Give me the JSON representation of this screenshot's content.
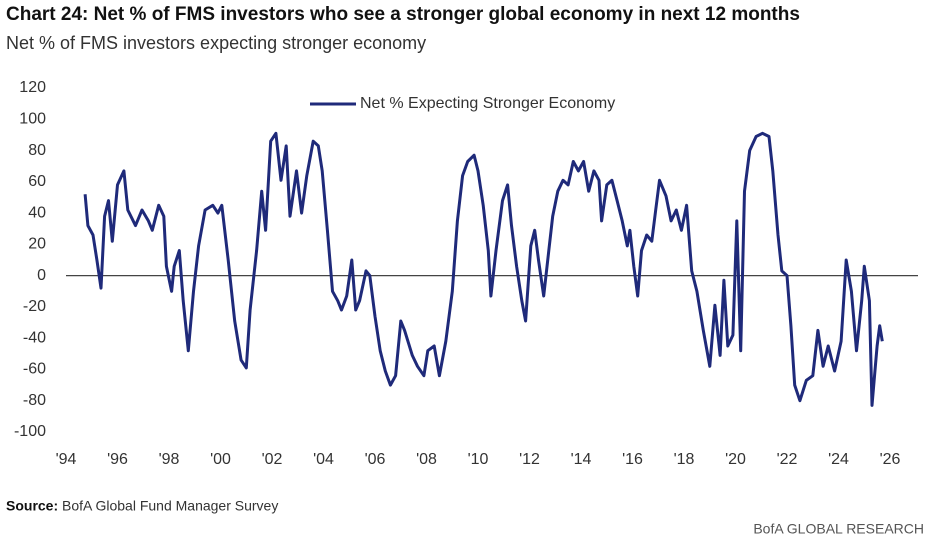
{
  "chart_data": {
    "type": "line",
    "title": "Chart 24: Net % of FMS investors who see a stronger global economy in next 12 months",
    "subtitle": "Net % of FMS investors expecting stronger economy",
    "source_label": "Source:",
    "source": "BofA Global Fund Manager Survey",
    "footer": "BofA GLOBAL RESEARCH",
    "legend_position": "top",
    "grid": false,
    "xlim": [
      1994,
      2026
    ],
    "ylim": [
      -100,
      120
    ],
    "yticks": [
      -100,
      -80,
      -60,
      -40,
      -20,
      0,
      20,
      40,
      60,
      80,
      100,
      120
    ],
    "xticks": [
      {
        "value": 1994,
        "label": "'94"
      },
      {
        "value": 1996,
        "label": "'96"
      },
      {
        "value": 1998,
        "label": "'98"
      },
      {
        "value": 2000,
        "label": "'00"
      },
      {
        "value": 2002,
        "label": "'02"
      },
      {
        "value": 2004,
        "label": "'04"
      },
      {
        "value": 2006,
        "label": "'06"
      },
      {
        "value": 2008,
        "label": "'08"
      },
      {
        "value": 2010,
        "label": "'10"
      },
      {
        "value": 2012,
        "label": "'12"
      },
      {
        "value": 2014,
        "label": "'14"
      },
      {
        "value": 2016,
        "label": "'16"
      },
      {
        "value": 2018,
        "label": "'18"
      },
      {
        "value": 2020,
        "label": "'20"
      },
      {
        "value": 2022,
        "label": "'22"
      },
      {
        "value": 2024,
        "label": "'24"
      },
      {
        "value": 2026,
        "label": "'26"
      }
    ],
    "x": [
      1994.74,
      1994.85,
      1995.05,
      1995.2,
      1995.36,
      1995.5,
      1995.65,
      1995.8,
      1996.0,
      1996.25,
      1996.4,
      1996.7,
      1996.95,
      1997.2,
      1997.35,
      1997.6,
      1997.8,
      1997.9,
      1998.1,
      1998.2,
      1998.4,
      1998.55,
      1998.75,
      1998.95,
      1999.15,
      1999.4,
      1999.7,
      1999.9,
      2000.05,
      2000.3,
      2000.55,
      2000.8,
      2001.0,
      2001.15,
      2001.4,
      2001.6,
      2001.75,
      2001.95,
      2002.15,
      2002.35,
      2002.55,
      2002.7,
      2002.95,
      2003.15,
      2003.35,
      2003.6,
      2003.8,
      2003.95,
      2004.15,
      2004.35,
      2004.55,
      2004.7,
      2004.9,
      2005.1,
      2005.25,
      2005.4,
      2005.65,
      2005.8,
      2006.0,
      2006.2,
      2006.4,
      2006.6,
      2006.8,
      2007.0,
      2007.15,
      2007.45,
      2007.65,
      2007.9,
      2008.05,
      2008.3,
      2008.5,
      2008.75,
      2009.0,
      2009.2,
      2009.4,
      2009.6,
      2009.85,
      2010.0,
      2010.2,
      2010.4,
      2010.5,
      2010.7,
      2010.95,
      2011.15,
      2011.3,
      2011.5,
      2011.7,
      2011.85,
      2012.05,
      2012.2,
      2012.35,
      2012.55,
      2012.75,
      2012.9,
      2013.1,
      2013.3,
      2013.5,
      2013.7,
      2013.9,
      2014.1,
      2014.3,
      2014.5,
      2014.7,
      2014.8,
      2015.0,
      2015.2,
      2015.4,
      2015.6,
      2015.8,
      2015.9,
      2016.05,
      2016.2,
      2016.35,
      2016.55,
      2016.75,
      2016.9,
      2017.05,
      2017.3,
      2017.5,
      2017.7,
      2017.9,
      2018.1,
      2018.3,
      2018.5,
      2018.75,
      2019.0,
      2019.2,
      2019.4,
      2019.55,
      2019.7,
      2019.9,
      2020.05,
      2020.2,
      2020.35,
      2020.55,
      2020.8,
      2021.05,
      2021.3,
      2021.45,
      2021.65,
      2021.8,
      2022.0,
      2022.15,
      2022.3,
      2022.5,
      2022.75,
      2023.0,
      2023.2,
      2023.4,
      2023.6,
      2023.85,
      2024.1,
      2024.3,
      2024.5,
      2024.7,
      2024.9,
      2025.0,
      2025.2,
      2025.3,
      2025.5,
      2025.6,
      2025.7
    ],
    "series": [
      {
        "name": "Net % Expecting Stronger Economy",
        "color": "#1f2a7a",
        "values": [
          52,
          32,
          26,
          10,
          -8,
          38,
          48,
          22,
          58,
          67,
          42,
          32,
          42,
          35,
          29,
          45,
          38,
          6,
          -10,
          6,
          16,
          -16,
          -48,
          -10,
          19,
          42,
          45,
          40,
          45,
          10,
          -29,
          -54,
          -59,
          -22,
          16,
          54,
          29,
          86,
          91,
          61,
          83,
          38,
          67,
          40,
          64,
          86,
          83,
          67,
          29,
          -10,
          -16,
          -22,
          -13,
          10,
          -22,
          -16,
          3,
          0,
          -26,
          -48,
          -61,
          -70,
          -64,
          -29,
          -35,
          -51,
          -58,
          -64,
          -48,
          -45,
          -64,
          -42,
          -10,
          35,
          64,
          73,
          77,
          67,
          45,
          16,
          -13,
          16,
          48,
          58,
          32,
          6,
          -16,
          -29,
          19,
          29,
          10,
          -13,
          16,
          38,
          54,
          61,
          58,
          73,
          67,
          73,
          54,
          67,
          61,
          35,
          58,
          61,
          48,
          35,
          19,
          29,
          6,
          -13,
          16,
          26,
          22,
          42,
          61,
          51,
          35,
          42,
          29,
          45,
          3,
          -10,
          -35,
          -58,
          -19,
          -51,
          -3,
          -45,
          -38,
          35,
          -48,
          54,
          80,
          89,
          91,
          89,
          67,
          26,
          3,
          0,
          -32,
          -70,
          -80,
          -67,
          -64,
          -35,
          -58,
          -45,
          -61,
          -42,
          10,
          -10,
          -48,
          -16,
          6,
          -16,
          -83,
          -45,
          -32,
          -42
        ]
      }
    ]
  }
}
